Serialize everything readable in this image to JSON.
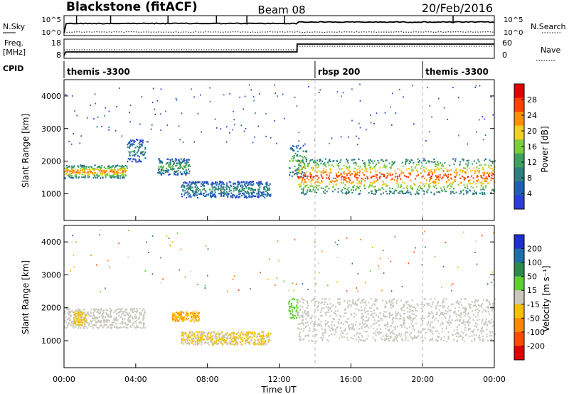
{
  "header": {
    "station": "Blackstone (fitACF)",
    "beam": "Beam 08",
    "date": "20/Feb/2016"
  },
  "summary_panels": {
    "nsky": {
      "label": "N.Sky",
      "ticks": [
        "10^5",
        "10^0"
      ],
      "right_label": "N.Search",
      "right_ticks": [
        "10^5",
        "10^0"
      ]
    },
    "freq": {
      "label": "Freq.",
      "unit": "[MHz]",
      "ticks": [
        "18",
        "8"
      ],
      "right_label": "Nave",
      "right_ticks": [
        "60",
        "0"
      ]
    },
    "cpid": {
      "label": "CPID"
    }
  },
  "cpid_segments": [
    {
      "name": "themis -3300",
      "start_h": 0,
      "end_h": 14
    },
    {
      "name": "rbsp 200",
      "start_h": 14,
      "end_h": 20
    },
    {
      "name": "themis -3300",
      "start_h": 20,
      "end_h": 24
    }
  ],
  "colors": {
    "power": [
      "#2d3ed8",
      "#1e5fb0",
      "#2e7f7f",
      "#3f9f5f",
      "#7ccd3c",
      "#f0d020",
      "#ff9000",
      "#ff4000",
      "#e00000"
    ],
    "velocity": [
      "#1e2fd0",
      "#1e6fa8",
      "#2e8a4a",
      "#5fcf30",
      "#c8c8bc",
      "#f5c000",
      "#ff8800",
      "#ff4a00",
      "#e00000"
    ]
  },
  "chart_data": [
    {
      "type": "heatmap",
      "name": "power",
      "ylabel": "Slant Range [km]",
      "xlim": [
        0,
        24
      ],
      "ylim": [
        180,
        4500
      ],
      "yticks": [
        1000,
        2000,
        3000,
        4000
      ],
      "xticks": [
        "00:00",
        "04:00",
        "08:00",
        "12:00",
        "16:00",
        "20:00",
        "00:00"
      ],
      "colorbar": {
        "label": "Power [dB]",
        "ticks": [
          "4",
          "8",
          "12",
          "16",
          "20",
          "24",
          "28"
        ],
        "range": [
          0,
          30
        ]
      },
      "echo_bands": [
        {
          "t": [
            0,
            3.5
          ],
          "range_km": [
            1500,
            1900
          ],
          "peak_db": 24
        },
        {
          "t": [
            3.5,
            4.5
          ],
          "range_km": [
            2000,
            2700
          ],
          "peak_db": 10
        },
        {
          "t": [
            5.2,
            7
          ],
          "range_km": [
            1600,
            2100
          ],
          "peak_db": 14
        },
        {
          "t": [
            6.5,
            11.5
          ],
          "range_km": [
            900,
            1400
          ],
          "peak_db": 10
        },
        {
          "t": [
            12.5,
            13.5
          ],
          "range_km": [
            1500,
            2500
          ],
          "peak_db": 16
        },
        {
          "t": [
            13,
            24
          ],
          "range_km": [
            1000,
            2100
          ],
          "peak_db": 26
        }
      ]
    },
    {
      "type": "heatmap",
      "name": "velocity",
      "xlabel": "Time UT",
      "ylabel": "Slant Range [km]",
      "xlim": [
        0,
        24
      ],
      "ylim": [
        180,
        4500
      ],
      "yticks": [
        1000,
        2000,
        3000,
        4000
      ],
      "xticks": [
        "00:00",
        "04:00",
        "08:00",
        "12:00",
        "16:00",
        "20:00",
        "00:00"
      ],
      "colorbar": {
        "label": "Velocity [m s⁻¹]",
        "ticks": [
          "200",
          "100",
          "50",
          "15",
          "-15",
          "-50",
          "-100",
          "-200"
        ],
        "range": [
          -250,
          250
        ]
      },
      "echo_bands": [
        {
          "t": [
            0,
            4.5
          ],
          "range_km": [
            1400,
            2000
          ],
          "velocity": 0
        },
        {
          "t": [
            0.5,
            1.2
          ],
          "range_km": [
            1500,
            1900
          ],
          "velocity": -40
        },
        {
          "t": [
            6,
            7.5
          ],
          "range_km": [
            1600,
            1900
          ],
          "velocity": -80
        },
        {
          "t": [
            6.5,
            11.5
          ],
          "range_km": [
            900,
            1300
          ],
          "velocity": -30
        },
        {
          "t": [
            12.5,
            13
          ],
          "range_km": [
            1700,
            2300
          ],
          "velocity": 40
        },
        {
          "t": [
            13,
            24
          ],
          "range_km": [
            1000,
            2300
          ],
          "velocity": 0
        }
      ]
    }
  ]
}
